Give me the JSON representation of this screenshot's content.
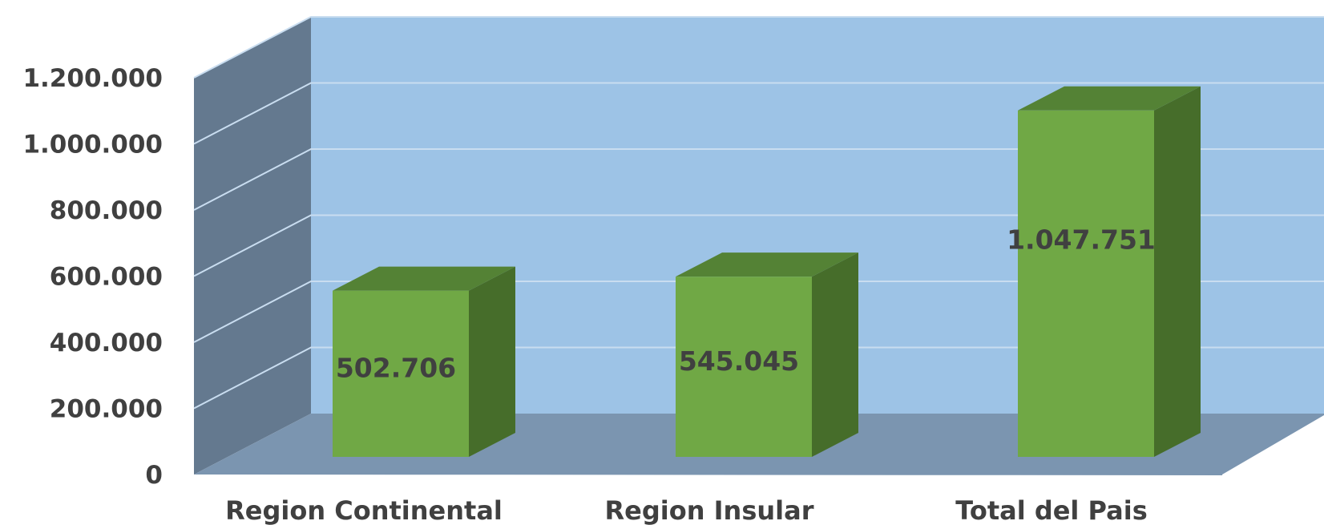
{
  "chart_data": {
    "type": "bar",
    "style": "3d-column",
    "categories": [
      "Region Continental",
      "Region Insular",
      "Total del Pais"
    ],
    "values": [
      502706,
      545045,
      1047751
    ],
    "data_labels": [
      "502.706",
      "545.045",
      "1.047.751"
    ],
    "ylim": [
      0,
      1200000
    ],
    "yticks": [
      0,
      200000,
      400000,
      600000,
      800000,
      1000000,
      1200000
    ],
    "ytick_labels": [
      "0",
      "200.000",
      "400.000",
      "600.000",
      "800.000",
      "1.000.000",
      "1.200.000"
    ],
    "grid": true,
    "legend": "none",
    "colors": {
      "bar_front": "#70A845",
      "bar_top": "#548235",
      "bar_side": "#466D2A",
      "back_wall": "#9DC3E6",
      "side_wall": "#64798F",
      "floor": "#7B95B0",
      "gridline": "#C9DDF0",
      "text": "#404040"
    }
  }
}
